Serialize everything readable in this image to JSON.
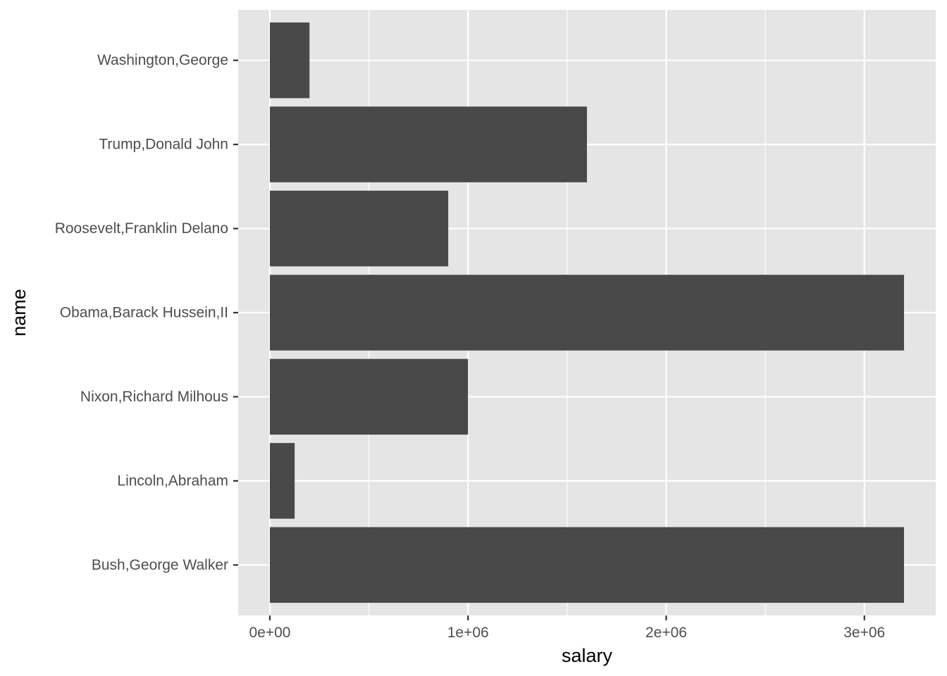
{
  "chart_data": {
    "type": "bar",
    "orientation": "horizontal",
    "categories": [
      "Bush,George Walker",
      "Lincoln,Abraham",
      "Nixon,Richard Milhous",
      "Obama,Barack Hussein,II",
      "Roosevelt,Franklin Delano",
      "Trump,Donald John",
      "Washington,George"
    ],
    "values": [
      3200000,
      125000,
      1000000,
      3200000,
      900000,
      1600000,
      200000
    ],
    "xlabel": "salary",
    "ylabel": "name",
    "xlim": [
      -160000,
      3360000
    ],
    "x_ticks": [
      0,
      1000000,
      2000000,
      3000000
    ],
    "x_tick_labels": [
      "0e+00",
      "1e+06",
      "2e+06",
      "3e+06"
    ],
    "grid": true,
    "colors": {
      "panel_background": "#e5e5e5",
      "gridline": "#ffffff",
      "bar_fill": "#494949",
      "tick_mark": "#333333"
    }
  }
}
